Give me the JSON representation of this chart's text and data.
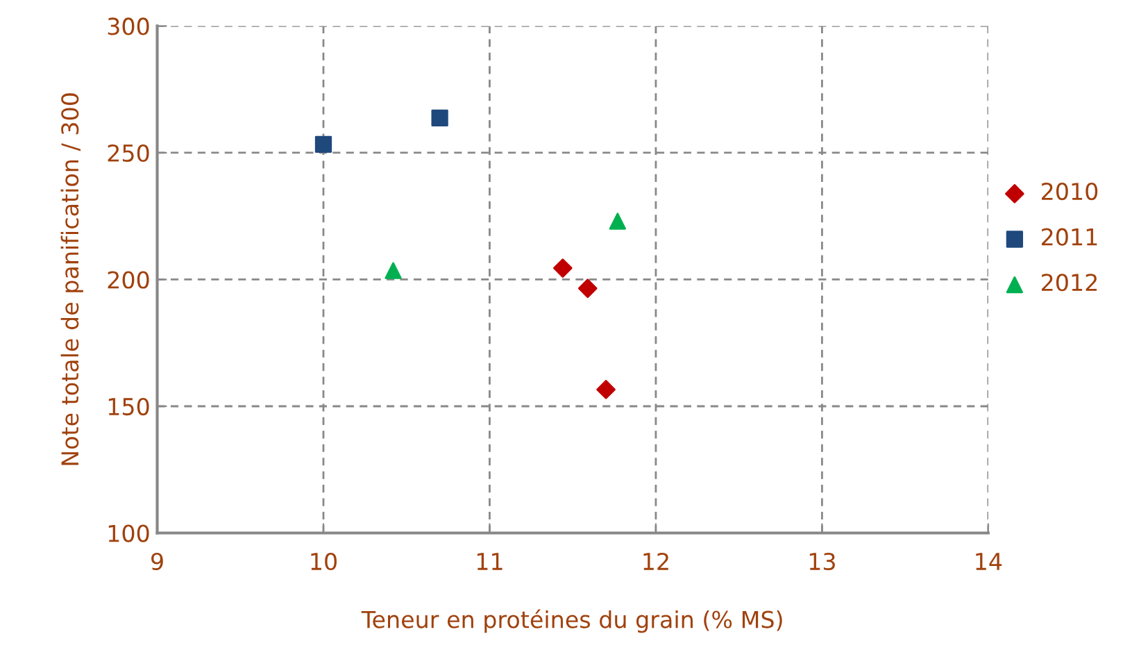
{
  "chart_data": {
    "type": "scatter",
    "xlabel": "Teneur en protéines du grain (% MS)",
    "ylabel": "Note totale de panification / 300",
    "series": [
      {
        "name": "2010",
        "color": "#c00000",
        "marker": "diamond",
        "x": [
          11.44,
          11.59,
          11.7
        ],
        "values": [
          204.5,
          196.5,
          156.6
        ]
      },
      {
        "name": "2011",
        "color": "#1f497d",
        "marker": "square",
        "x": [
          10.0,
          10.7
        ],
        "values": [
          253.3,
          263.7
        ]
      },
      {
        "name": "2012",
        "color": "#00b050",
        "marker": "triangle",
        "x": [
          10.42,
          11.77
        ],
        "values": [
          203.5,
          223
        ]
      }
    ],
    "xlim": [
      9,
      14
    ],
    "xticks": [
      9,
      10,
      11,
      12,
      13,
      14
    ],
    "ylim": [
      100,
      300
    ],
    "yticks": [
      100,
      150,
      200,
      250,
      300
    ],
    "grid": true,
    "legend": "right"
  }
}
